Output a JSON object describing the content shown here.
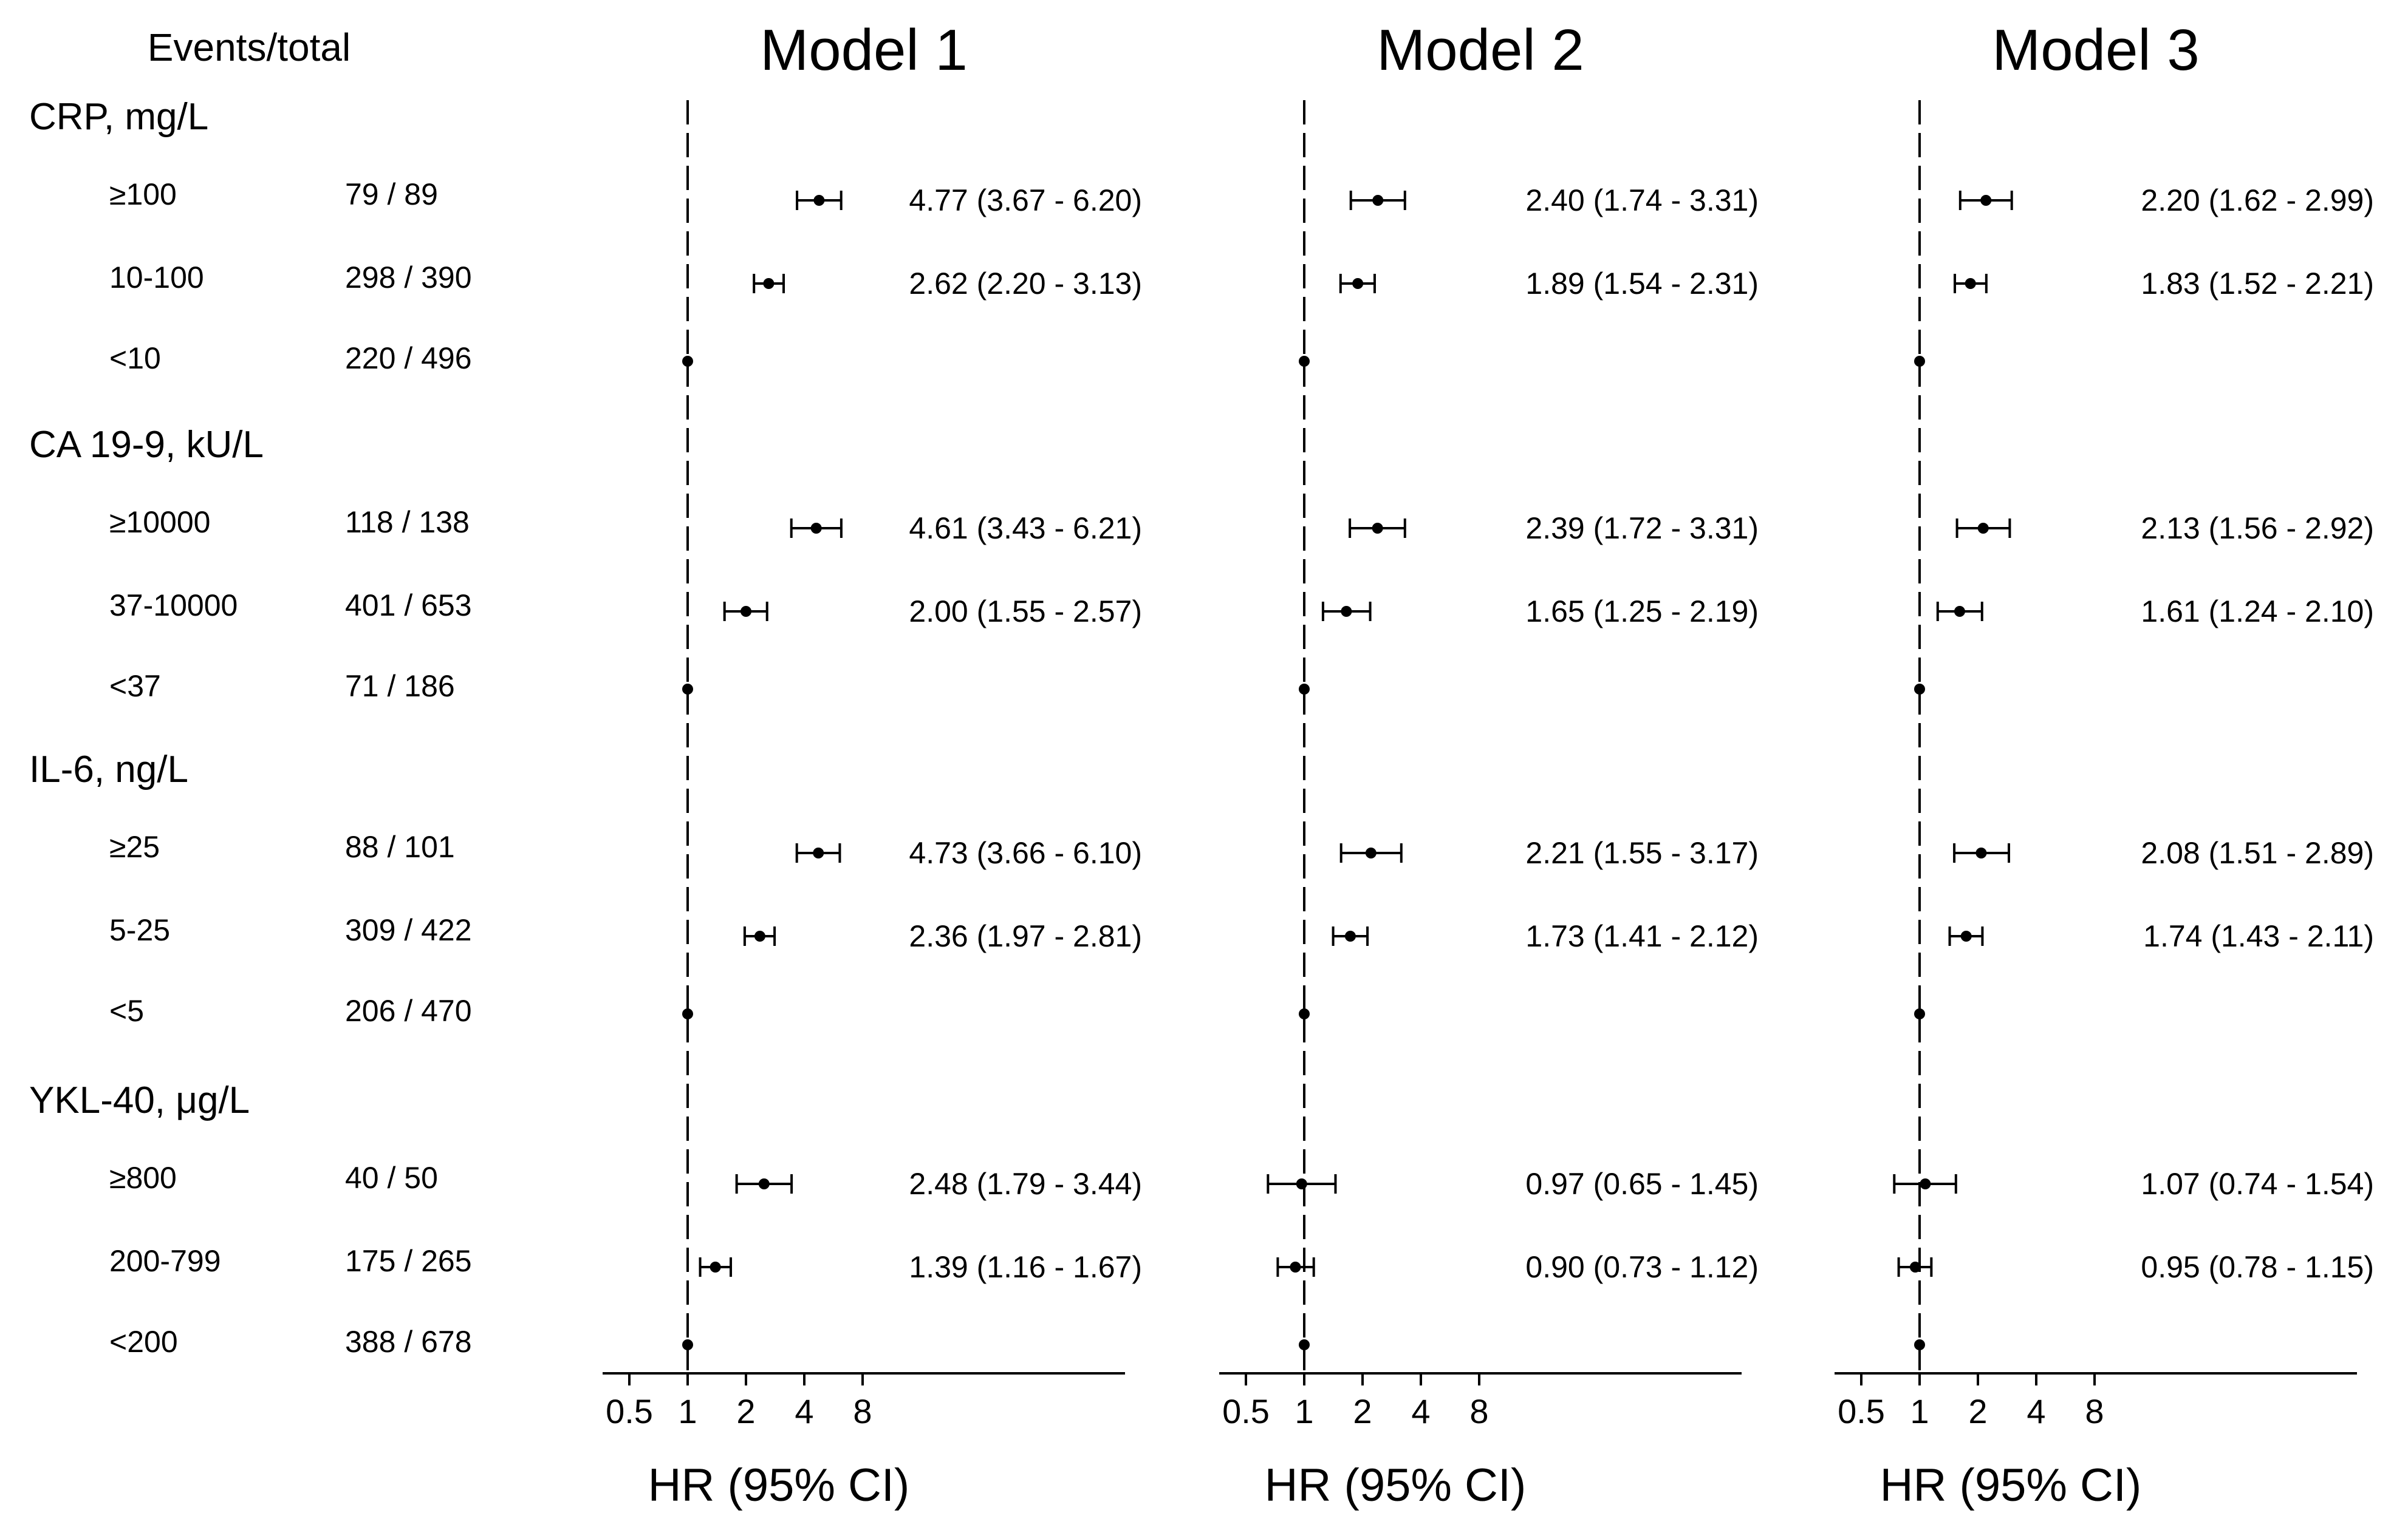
{
  "header": {
    "events_label": "Events/total"
  },
  "chart_data": {
    "type": "forest",
    "x_scale": "log2",
    "xlim": [
      0.5,
      8
    ],
    "x_ticks": [
      0.5,
      1,
      2,
      4,
      8
    ],
    "x_tick_labels": [
      "0.5",
      "1",
      "2",
      "4",
      "8"
    ],
    "reference_line": 1,
    "xlabel": "HR (95% CI)",
    "models": [
      "Model 1",
      "Model 2",
      "Model 3"
    ],
    "groups": [
      {
        "label": "CRP, mg/L",
        "rows": [
          {
            "category": "≥100",
            "events": "79 / 89",
            "estimates": [
              {
                "hr": 4.77,
                "lo": 3.67,
                "hi": 6.2,
                "text": "4.77 (3.67 - 6.20)"
              },
              {
                "hr": 2.4,
                "lo": 1.74,
                "hi": 3.31,
                "text": "2.40 (1.74 - 3.31)"
              },
              {
                "hr": 2.2,
                "lo": 1.62,
                "hi": 2.99,
                "text": "2.20 (1.62 - 2.99)"
              }
            ]
          },
          {
            "category": "10-100",
            "events": "298 / 390",
            "estimates": [
              {
                "hr": 2.62,
                "lo": 2.2,
                "hi": 3.13,
                "text": "2.62 (2.20 - 3.13)"
              },
              {
                "hr": 1.89,
                "lo": 1.54,
                "hi": 2.31,
                "text": "1.89 (1.54 - 2.31)"
              },
              {
                "hr": 1.83,
                "lo": 1.52,
                "hi": 2.21,
                "text": "1.83 (1.52 - 2.21)"
              }
            ]
          },
          {
            "category": "<10",
            "events": "220 / 496",
            "estimates": [
              {
                "hr": 1,
                "lo": 1,
                "hi": 1,
                "text": ""
              },
              {
                "hr": 1,
                "lo": 1,
                "hi": 1,
                "text": ""
              },
              {
                "hr": 1,
                "lo": 1,
                "hi": 1,
                "text": ""
              }
            ]
          }
        ]
      },
      {
        "label": "CA 19-9, kU/L",
        "rows": [
          {
            "category": "≥10000",
            "events": "118 / 138",
            "estimates": [
              {
                "hr": 4.61,
                "lo": 3.43,
                "hi": 6.21,
                "text": "4.61 (3.43 - 6.21)"
              },
              {
                "hr": 2.39,
                "lo": 1.72,
                "hi": 3.31,
                "text": "2.39 (1.72 - 3.31)"
              },
              {
                "hr": 2.13,
                "lo": 1.56,
                "hi": 2.92,
                "text": "2.13 (1.56 - 2.92)"
              }
            ]
          },
          {
            "category": "37-10000",
            "events": "401 / 653",
            "estimates": [
              {
                "hr": 2.0,
                "lo": 1.55,
                "hi": 2.57,
                "text": "2.00 (1.55 - 2.57)"
              },
              {
                "hr": 1.65,
                "lo": 1.25,
                "hi": 2.19,
                "text": "1.65 (1.25 - 2.19)"
              },
              {
                "hr": 1.61,
                "lo": 1.24,
                "hi": 2.1,
                "text": "1.61 (1.24 - 2.10)"
              }
            ]
          },
          {
            "category": "<37",
            "events": "71 / 186",
            "estimates": [
              {
                "hr": 1,
                "lo": 1,
                "hi": 1,
                "text": ""
              },
              {
                "hr": 1,
                "lo": 1,
                "hi": 1,
                "text": ""
              },
              {
                "hr": 1,
                "lo": 1,
                "hi": 1,
                "text": ""
              }
            ]
          }
        ]
      },
      {
        "label": "IL-6, ng/L",
        "rows": [
          {
            "category": "≥25",
            "events": "88 / 101",
            "estimates": [
              {
                "hr": 4.73,
                "lo": 3.66,
                "hi": 6.1,
                "text": "4.73 (3.66 - 6.10)"
              },
              {
                "hr": 2.21,
                "lo": 1.55,
                "hi": 3.17,
                "text": "2.21 (1.55 - 3.17)"
              },
              {
                "hr": 2.08,
                "lo": 1.51,
                "hi": 2.89,
                "text": "2.08 (1.51 - 2.89)"
              }
            ]
          },
          {
            "category": "5-25",
            "events": "309 / 422",
            "estimates": [
              {
                "hr": 2.36,
                "lo": 1.97,
                "hi": 2.81,
                "text": "2.36 (1.97 - 2.81)"
              },
              {
                "hr": 1.73,
                "lo": 1.41,
                "hi": 2.12,
                "text": "1.73 (1.41 - 2.12)"
              },
              {
                "hr": 1.74,
                "lo": 1.43,
                "hi": 2.11,
                "text": "1.74 (1.43 - 2.11)"
              }
            ]
          },
          {
            "category": "<5",
            "events": "206 / 470",
            "estimates": [
              {
                "hr": 1,
                "lo": 1,
                "hi": 1,
                "text": ""
              },
              {
                "hr": 1,
                "lo": 1,
                "hi": 1,
                "text": ""
              },
              {
                "hr": 1,
                "lo": 1,
                "hi": 1,
                "text": ""
              }
            ]
          }
        ]
      },
      {
        "label": "YKL-40, μg/L",
        "rows": [
          {
            "category": "≥800",
            "events": "40 / 50",
            "estimates": [
              {
                "hr": 2.48,
                "lo": 1.79,
                "hi": 3.44,
                "text": "2.48 (1.79 - 3.44)"
              },
              {
                "hr": 0.97,
                "lo": 0.65,
                "hi": 1.45,
                "text": "0.97 (0.65 - 1.45)"
              },
              {
                "hr": 1.07,
                "lo": 0.74,
                "hi": 1.54,
                "text": "1.07 (0.74 - 1.54)"
              }
            ]
          },
          {
            "category": "200-799",
            "events": "175 / 265",
            "estimates": [
              {
                "hr": 1.39,
                "lo": 1.16,
                "hi": 1.67,
                "text": "1.39 (1.16 - 1.67)"
              },
              {
                "hr": 0.9,
                "lo": 0.73,
                "hi": 1.12,
                "text": "0.90 (0.73 - 1.12)"
              },
              {
                "hr": 0.95,
                "lo": 0.78,
                "hi": 1.15,
                "text": "0.95 (0.78 - 1.15)"
              }
            ]
          },
          {
            "category": "<200",
            "events": "388 / 678",
            "estimates": [
              {
                "hr": 1,
                "lo": 1,
                "hi": 1,
                "text": ""
              },
              {
                "hr": 1,
                "lo": 1,
                "hi": 1,
                "text": ""
              },
              {
                "hr": 1,
                "lo": 1,
                "hi": 1,
                "text": ""
              }
            ]
          }
        ]
      }
    ]
  }
}
